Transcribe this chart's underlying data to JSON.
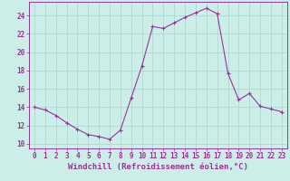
{
  "title": "",
  "xlabel": "Windchill (Refroidissement éolien,°C)",
  "ylabel": "",
  "background_color": "#cceee8",
  "grid_color": "#aad4cc",
  "line_color": "#993399",
  "marker_color": "#993399",
  "x": [
    0,
    1,
    2,
    3,
    4,
    5,
    6,
    7,
    8,
    9,
    10,
    11,
    12,
    13,
    14,
    15,
    16,
    17,
    18,
    19,
    20,
    21,
    22,
    23
  ],
  "y": [
    14.0,
    13.7,
    13.1,
    12.3,
    11.6,
    11.0,
    10.8,
    10.5,
    11.5,
    15.0,
    18.5,
    22.8,
    22.6,
    23.2,
    23.8,
    24.3,
    24.8,
    24.2,
    17.7,
    14.8,
    15.5,
    14.1,
    13.8,
    13.5
  ],
  "ylim": [
    9.5,
    25.5
  ],
  "yticks": [
    10,
    12,
    14,
    16,
    18,
    20,
    22,
    24
  ],
  "xlim": [
    -0.5,
    23.5
  ],
  "xticks": [
    0,
    1,
    2,
    3,
    4,
    5,
    6,
    7,
    8,
    9,
    10,
    11,
    12,
    13,
    14,
    15,
    16,
    17,
    18,
    19,
    20,
    21,
    22,
    23
  ],
  "tick_label_fontsize": 5.5,
  "xlabel_fontsize": 6.5
}
